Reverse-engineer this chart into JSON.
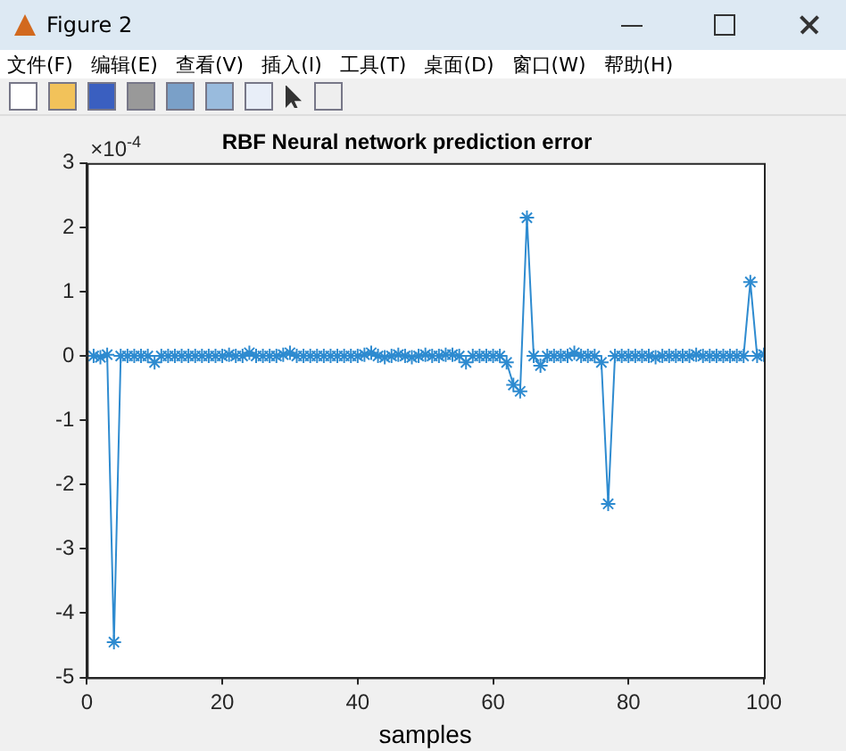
{
  "chart_data": {
    "type": "line",
    "title": "RBF Neural network prediction error",
    "xlabel": "samples",
    "annotations": [
      "×10$^{-4}$",
      "Figure 2",
      "文件(F)",
      "编辑(E)",
      "查看(V)",
      "插入(I)",
      "工具(T)",
      "桌面(D)",
      "窗口(W)",
      "帮助(H)"
    ],
    "x": [
      1,
      2,
      3,
      4,
      5,
      6,
      7,
      8,
      9,
      10,
      11,
      12,
      13,
      14,
      15,
      16,
      17,
      18,
      19,
      20,
      21,
      22,
      23,
      24,
      25,
      26,
      27,
      28,
      29,
      30,
      31,
      32,
      33,
      34,
      35,
      36,
      37,
      38,
      39,
      40,
      41,
      42,
      43,
      44,
      45,
      46,
      47,
      48,
      49,
      50,
      51,
      52,
      53,
      54,
      55,
      56,
      57,
      58,
      59,
      60,
      61,
      62,
      63,
      64,
      65,
      66,
      67,
      68,
      69,
      70,
      71,
      72,
      73,
      74,
      75,
      76,
      77,
      78,
      79,
      80,
      81,
      82,
      83,
      84,
      85,
      86,
      87,
      88,
      89,
      90,
      91,
      92,
      93,
      94,
      95,
      96,
      97,
      98,
      99,
      100
    ],
    "series": [
      {
        "color": "#2e8bd0",
        "values": [
          0,
          -0.02,
          0.02,
          -4.45,
          0,
          0,
          0,
          0,
          0,
          -0.1,
          0,
          0,
          0,
          0,
          0,
          0,
          0,
          0,
          0,
          0,
          0.02,
          0,
          0,
          0.05,
          0,
          0,
          0,
          0,
          0.02,
          0.05,
          0,
          0,
          0,
          0,
          0,
          0,
          0,
          0,
          0,
          0,
          0.02,
          0.05,
          0,
          -0.02,
          0,
          0.02,
          0,
          -0.02,
          0,
          0.02,
          0,
          0,
          0.02,
          0.02,
          0,
          -0.1,
          0,
          0,
          0,
          0,
          0,
          -0.1,
          -0.45,
          -0.55,
          2.15,
          0,
          -0.15,
          0,
          0,
          0,
          0,
          0.05,
          0,
          0,
          0,
          -0.1,
          -2.3,
          0,
          0,
          0,
          0,
          0,
          0,
          -0.02,
          0,
          0,
          0,
          0,
          0,
          0.02,
          0,
          0,
          0,
          0,
          0,
          0,
          0,
          1.15,
          0,
          0.02
        ]
      }
    ],
    "xlim": [
      0,
      100
    ],
    "xticks": [
      0,
      20,
      40,
      60,
      80,
      100
    ],
    "ylim": [
      -5,
      3
    ],
    "yticks": [
      -5,
      -4,
      -3,
      -2,
      -1,
      0,
      1,
      2,
      3
    ],
    "grid": false,
    "legend": false,
    "marker": "cross",
    "line_style": "solid"
  }
}
